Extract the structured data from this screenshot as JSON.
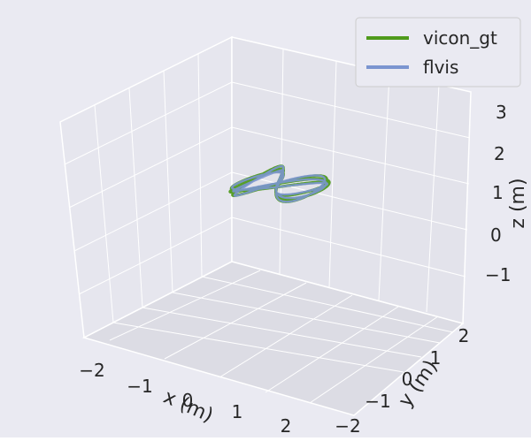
{
  "chart_data": {
    "type": "line",
    "projection": "3d",
    "xlabel": "x (m)",
    "ylabel": "y (m)",
    "zlabel": "z (m)",
    "x_ticks": [
      "−2",
      "−1",
      "0",
      "1",
      "2"
    ],
    "y_ticks": [
      "−2",
      "−1",
      "0",
      "1",
      "2"
    ],
    "z_ticks": [
      "−1",
      "0",
      "1",
      "2",
      "3"
    ],
    "xlim": [
      -2.5,
      2.5
    ],
    "ylim": [
      -2.5,
      2.5
    ],
    "zlim": [
      -1.5,
      3.5
    ],
    "grid": true,
    "legend_position": "top-right",
    "background_color": "#eaeaf2",
    "series": [
      {
        "name": "vicon_gt",
        "color": "#4f9a1c",
        "shape": "figure-eight",
        "center": [
          0.0,
          0.0,
          1.0
        ],
        "x_amplitude": 1.25,
        "y_amplitude": 1.25,
        "z_variation": 0.1,
        "laps": 3
      },
      {
        "name": "flvis",
        "color": "#7b95d0",
        "shape": "figure-eight",
        "center": [
          0.0,
          0.0,
          1.0
        ],
        "x_amplitude": 1.2,
        "y_amplitude": 1.2,
        "z_variation": 0.12,
        "laps": 3
      }
    ]
  }
}
